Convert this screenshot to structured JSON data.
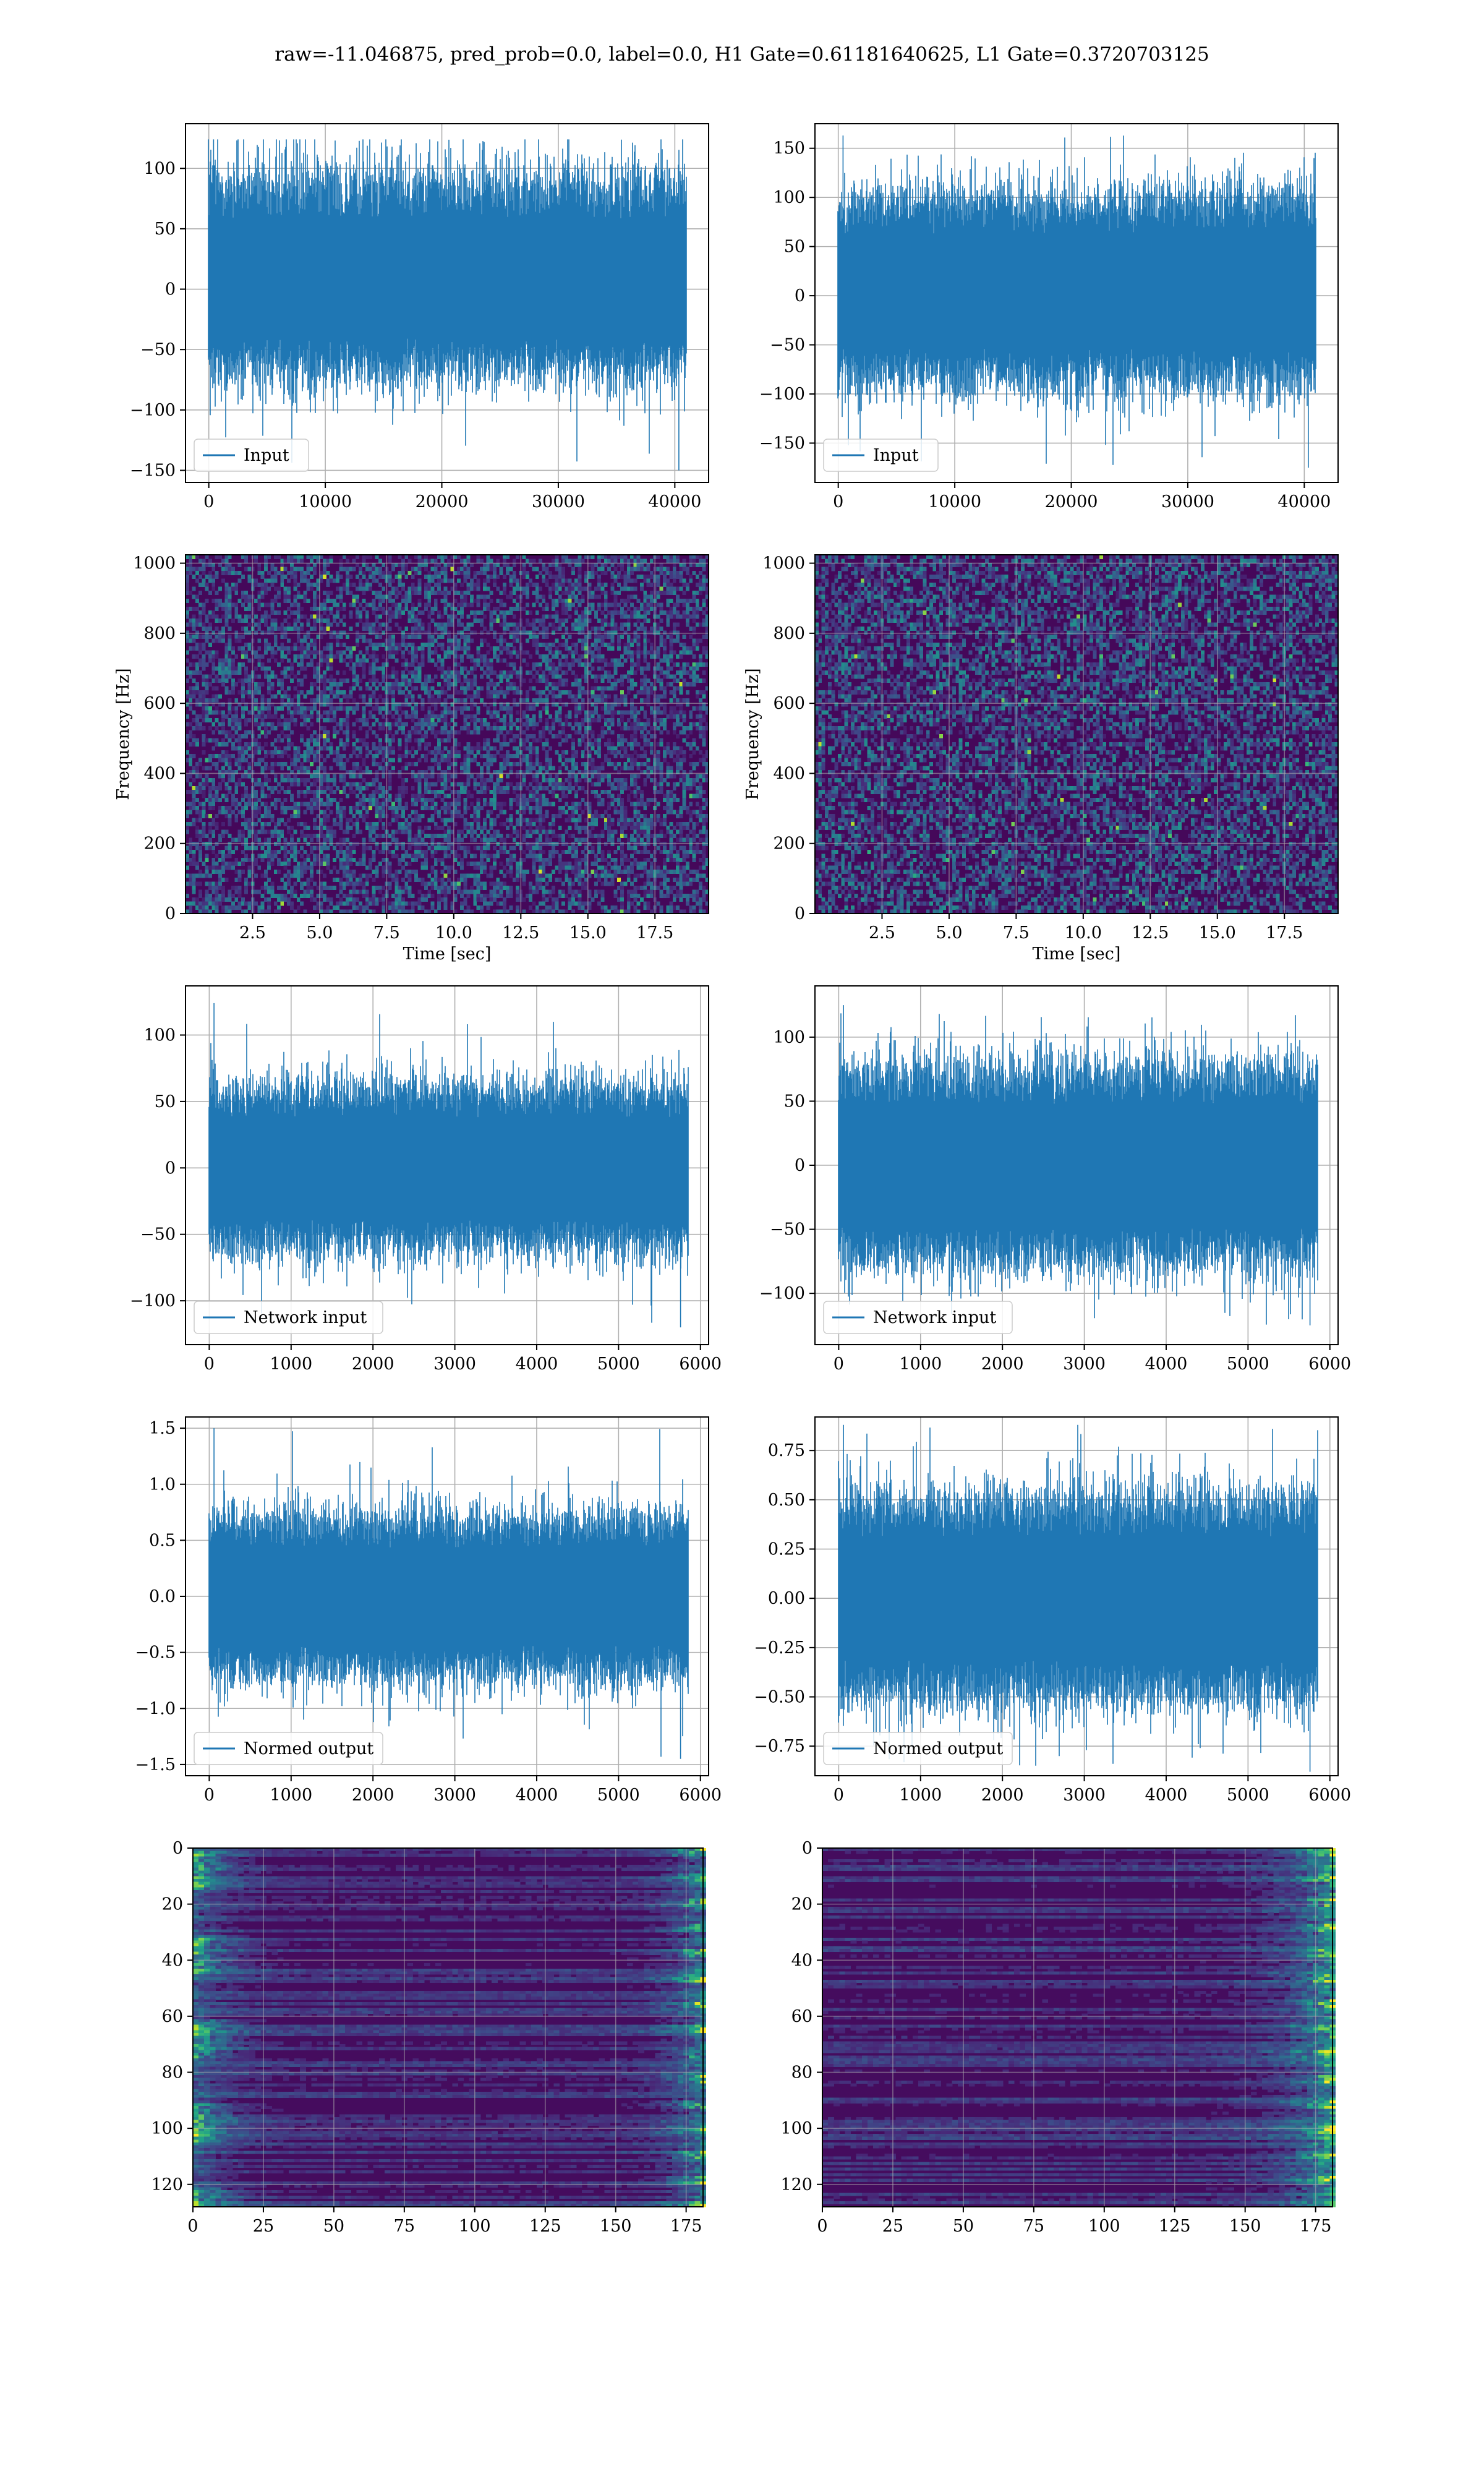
{
  "suptitle": "raw=-11.046875, pred_prob=0.0, label=0.0, H1 Gate=0.61181640625, L1 Gate=0.3720703125",
  "colors": {
    "line": "#1f77b4",
    "grid": "#b0b0b0",
    "viridis_low": "#440154",
    "viridis_high": "#fde725"
  },
  "chart_data": [
    {
      "type": "line",
      "panel": "row1-left",
      "legend": "Input",
      "legend_loc": "lower left",
      "grid": true,
      "xlim": [
        -2000,
        42900
      ],
      "ylim": [
        -160,
        137
      ],
      "xticks": [
        0,
        10000,
        20000,
        30000,
        40000
      ],
      "xtick_labels": [
        "0",
        "10000",
        "20000",
        "30000",
        "40000"
      ],
      "yticks": [
        -150,
        -100,
        -50,
        0,
        50,
        100
      ],
      "ytick_labels": [
        "−150",
        "−100",
        "−50",
        "0",
        "50",
        "100"
      ],
      "x_range": [
        0,
        40960
      ],
      "envelope": {
        "typical_max": 90,
        "typical_min": -65,
        "peak_max": 124,
        "peak_min": -150
      }
    },
    {
      "type": "line",
      "panel": "row1-right",
      "legend": "Input",
      "legend_loc": "lower left",
      "grid": true,
      "xlim": [
        -2000,
        42900
      ],
      "ylim": [
        -190,
        175
      ],
      "xticks": [
        0,
        10000,
        20000,
        30000,
        40000
      ],
      "xtick_labels": [
        "0",
        "10000",
        "20000",
        "30000",
        "40000"
      ],
      "yticks": [
        -150,
        -100,
        -50,
        0,
        50,
        100,
        150
      ],
      "ytick_labels": [
        "−150",
        "−100",
        "−50",
        "0",
        "50",
        "100",
        "150"
      ],
      "x_range": [
        0,
        40960
      ],
      "envelope": {
        "typical_max": 100,
        "typical_min": -85,
        "peak_max": 163,
        "peak_min": -175
      }
    },
    {
      "type": "heatmap",
      "panel": "row2-left",
      "colormap": "viridis",
      "grid": true,
      "xlabel": "Time [sec]",
      "ylabel": "Frequency [Hz]",
      "xlim": [
        0,
        19.5
      ],
      "ylim": [
        0,
        1024
      ],
      "xticks": [
        2.5,
        5,
        7.5,
        10,
        12.5,
        15,
        17.5
      ],
      "xtick_labels": [
        "2.5",
        "5.0",
        "7.5",
        "10.0",
        "12.5",
        "15.0",
        "17.5"
      ],
      "yticks": [
        0,
        200,
        400,
        600,
        800,
        1000
      ],
      "ytick_labels": [
        "0",
        "200",
        "400",
        "600",
        "800",
        "1000"
      ]
    },
    {
      "type": "heatmap",
      "panel": "row2-right",
      "colormap": "viridis",
      "grid": true,
      "xlabel": "Time [sec]",
      "ylabel": "Frequency [Hz]",
      "xlim": [
        0,
        19.5
      ],
      "ylim": [
        0,
        1024
      ],
      "xticks": [
        2.5,
        5,
        7.5,
        10,
        12.5,
        15,
        17.5
      ],
      "xtick_labels": [
        "2.5",
        "5.0",
        "7.5",
        "10.0",
        "12.5",
        "15.0",
        "17.5"
      ],
      "yticks": [
        0,
        200,
        400,
        600,
        800,
        1000
      ],
      "ytick_labels": [
        "0",
        "200",
        "400",
        "600",
        "800",
        "1000"
      ]
    },
    {
      "type": "line",
      "panel": "row3-left",
      "legend": "Network input",
      "legend_loc": "lower left",
      "grid": true,
      "xlim": [
        -290,
        6100
      ],
      "ylim": [
        -133,
        137
      ],
      "xticks": [
        0,
        1000,
        2000,
        3000,
        4000,
        5000,
        6000
      ],
      "xtick_labels": [
        "0",
        "1000",
        "2000",
        "3000",
        "4000",
        "5000",
        "6000"
      ],
      "yticks": [
        -100,
        -50,
        0,
        50,
        100
      ],
      "ytick_labels": [
        "−100",
        "−50",
        "0",
        "50",
        "100"
      ],
      "x_range": [
        0,
        5845
      ],
      "envelope": {
        "typical_max": 60,
        "typical_min": -60,
        "peak_max": 124,
        "peak_min": -120
      }
    },
    {
      "type": "line",
      "panel": "row3-right",
      "legend": "Network input",
      "legend_loc": "lower left",
      "grid": true,
      "xlim": [
        -290,
        6100
      ],
      "ylim": [
        -140,
        140
      ],
      "xticks": [
        0,
        1000,
        2000,
        3000,
        4000,
        5000,
        6000
      ],
      "xtick_labels": [
        "0",
        "1000",
        "2000",
        "3000",
        "4000",
        "5000",
        "6000"
      ],
      "yticks": [
        -100,
        -50,
        0,
        50,
        100
      ],
      "ytick_labels": [
        "−100",
        "−50",
        "0",
        "50",
        "100"
      ],
      "x_range": [
        0,
        5845
      ],
      "envelope": {
        "typical_max": 75,
        "typical_min": -75,
        "peak_max": 125,
        "peak_min": -125
      }
    },
    {
      "type": "line",
      "panel": "row4-left",
      "legend": "Normed output",
      "legend_loc": "lower left",
      "grid": true,
      "xlim": [
        -290,
        6100
      ],
      "ylim": [
        -1.6,
        1.6
      ],
      "xticks": [
        0,
        1000,
        2000,
        3000,
        4000,
        5000,
        6000
      ],
      "xtick_labels": [
        "0",
        "1000",
        "2000",
        "3000",
        "4000",
        "5000",
        "6000"
      ],
      "yticks": [
        -1.5,
        -1,
        -0.5,
        0,
        0.5,
        1,
        1.5
      ],
      "ytick_labels": [
        "−1.5",
        "−1.0",
        "−0.5",
        "0.0",
        "0.5",
        "1.0",
        "1.5"
      ],
      "x_range": [
        0,
        5845
      ],
      "envelope": {
        "typical_max": 0.7,
        "typical_min": -0.7,
        "peak_max": 1.5,
        "peak_min": -1.45
      }
    },
    {
      "type": "line",
      "panel": "row4-right",
      "legend": "Normed output",
      "legend_loc": "lower left",
      "grid": true,
      "xlim": [
        -290,
        6100
      ],
      "ylim": [
        -0.9,
        0.92
      ],
      "xticks": [
        0,
        1000,
        2000,
        3000,
        4000,
        5000,
        6000
      ],
      "xtick_labels": [
        "0",
        "1000",
        "2000",
        "3000",
        "4000",
        "5000",
        "6000"
      ],
      "yticks": [
        -0.75,
        -0.5,
        -0.25,
        0,
        0.25,
        0.5,
        0.75
      ],
      "ytick_labels": [
        "−0.75",
        "−0.50",
        "−0.25",
        "0.00",
        "0.25",
        "0.50",
        "0.75"
      ],
      "x_range": [
        0,
        5845
      ],
      "envelope": {
        "typical_max": 0.5,
        "typical_min": -0.5,
        "peak_max": 0.88,
        "peak_min": -0.88
      }
    },
    {
      "type": "heatmap",
      "panel": "row5-left",
      "colormap": "viridis",
      "grid": true,
      "xlim": [
        0,
        181
      ],
      "ylim": [
        128,
        0
      ],
      "rows": 128,
      "cols": 181,
      "xticks": [
        0,
        25,
        50,
        75,
        100,
        125,
        150,
        175
      ],
      "xtick_labels": [
        "0",
        "25",
        "50",
        "75",
        "100",
        "125",
        "150",
        "175"
      ],
      "yticks": [
        0,
        20,
        40,
        60,
        80,
        100,
        120
      ],
      "ytick_labels": [
        "0",
        "20",
        "40",
        "60",
        "80",
        "100",
        "120"
      ]
    },
    {
      "type": "heatmap",
      "panel": "row5-right",
      "colormap": "viridis",
      "grid": true,
      "xlim": [
        0,
        181
      ],
      "ylim": [
        128,
        0
      ],
      "rows": 128,
      "cols": 181,
      "xticks": [
        0,
        25,
        50,
        75,
        100,
        125,
        150,
        175
      ],
      "xtick_labels": [
        "0",
        "25",
        "50",
        "75",
        "100",
        "125",
        "150",
        "175"
      ],
      "yticks": [
        0,
        20,
        40,
        60,
        80,
        100,
        120
      ],
      "ytick_labels": [
        "0",
        "20",
        "40",
        "60",
        "80",
        "100",
        "120"
      ]
    }
  ]
}
